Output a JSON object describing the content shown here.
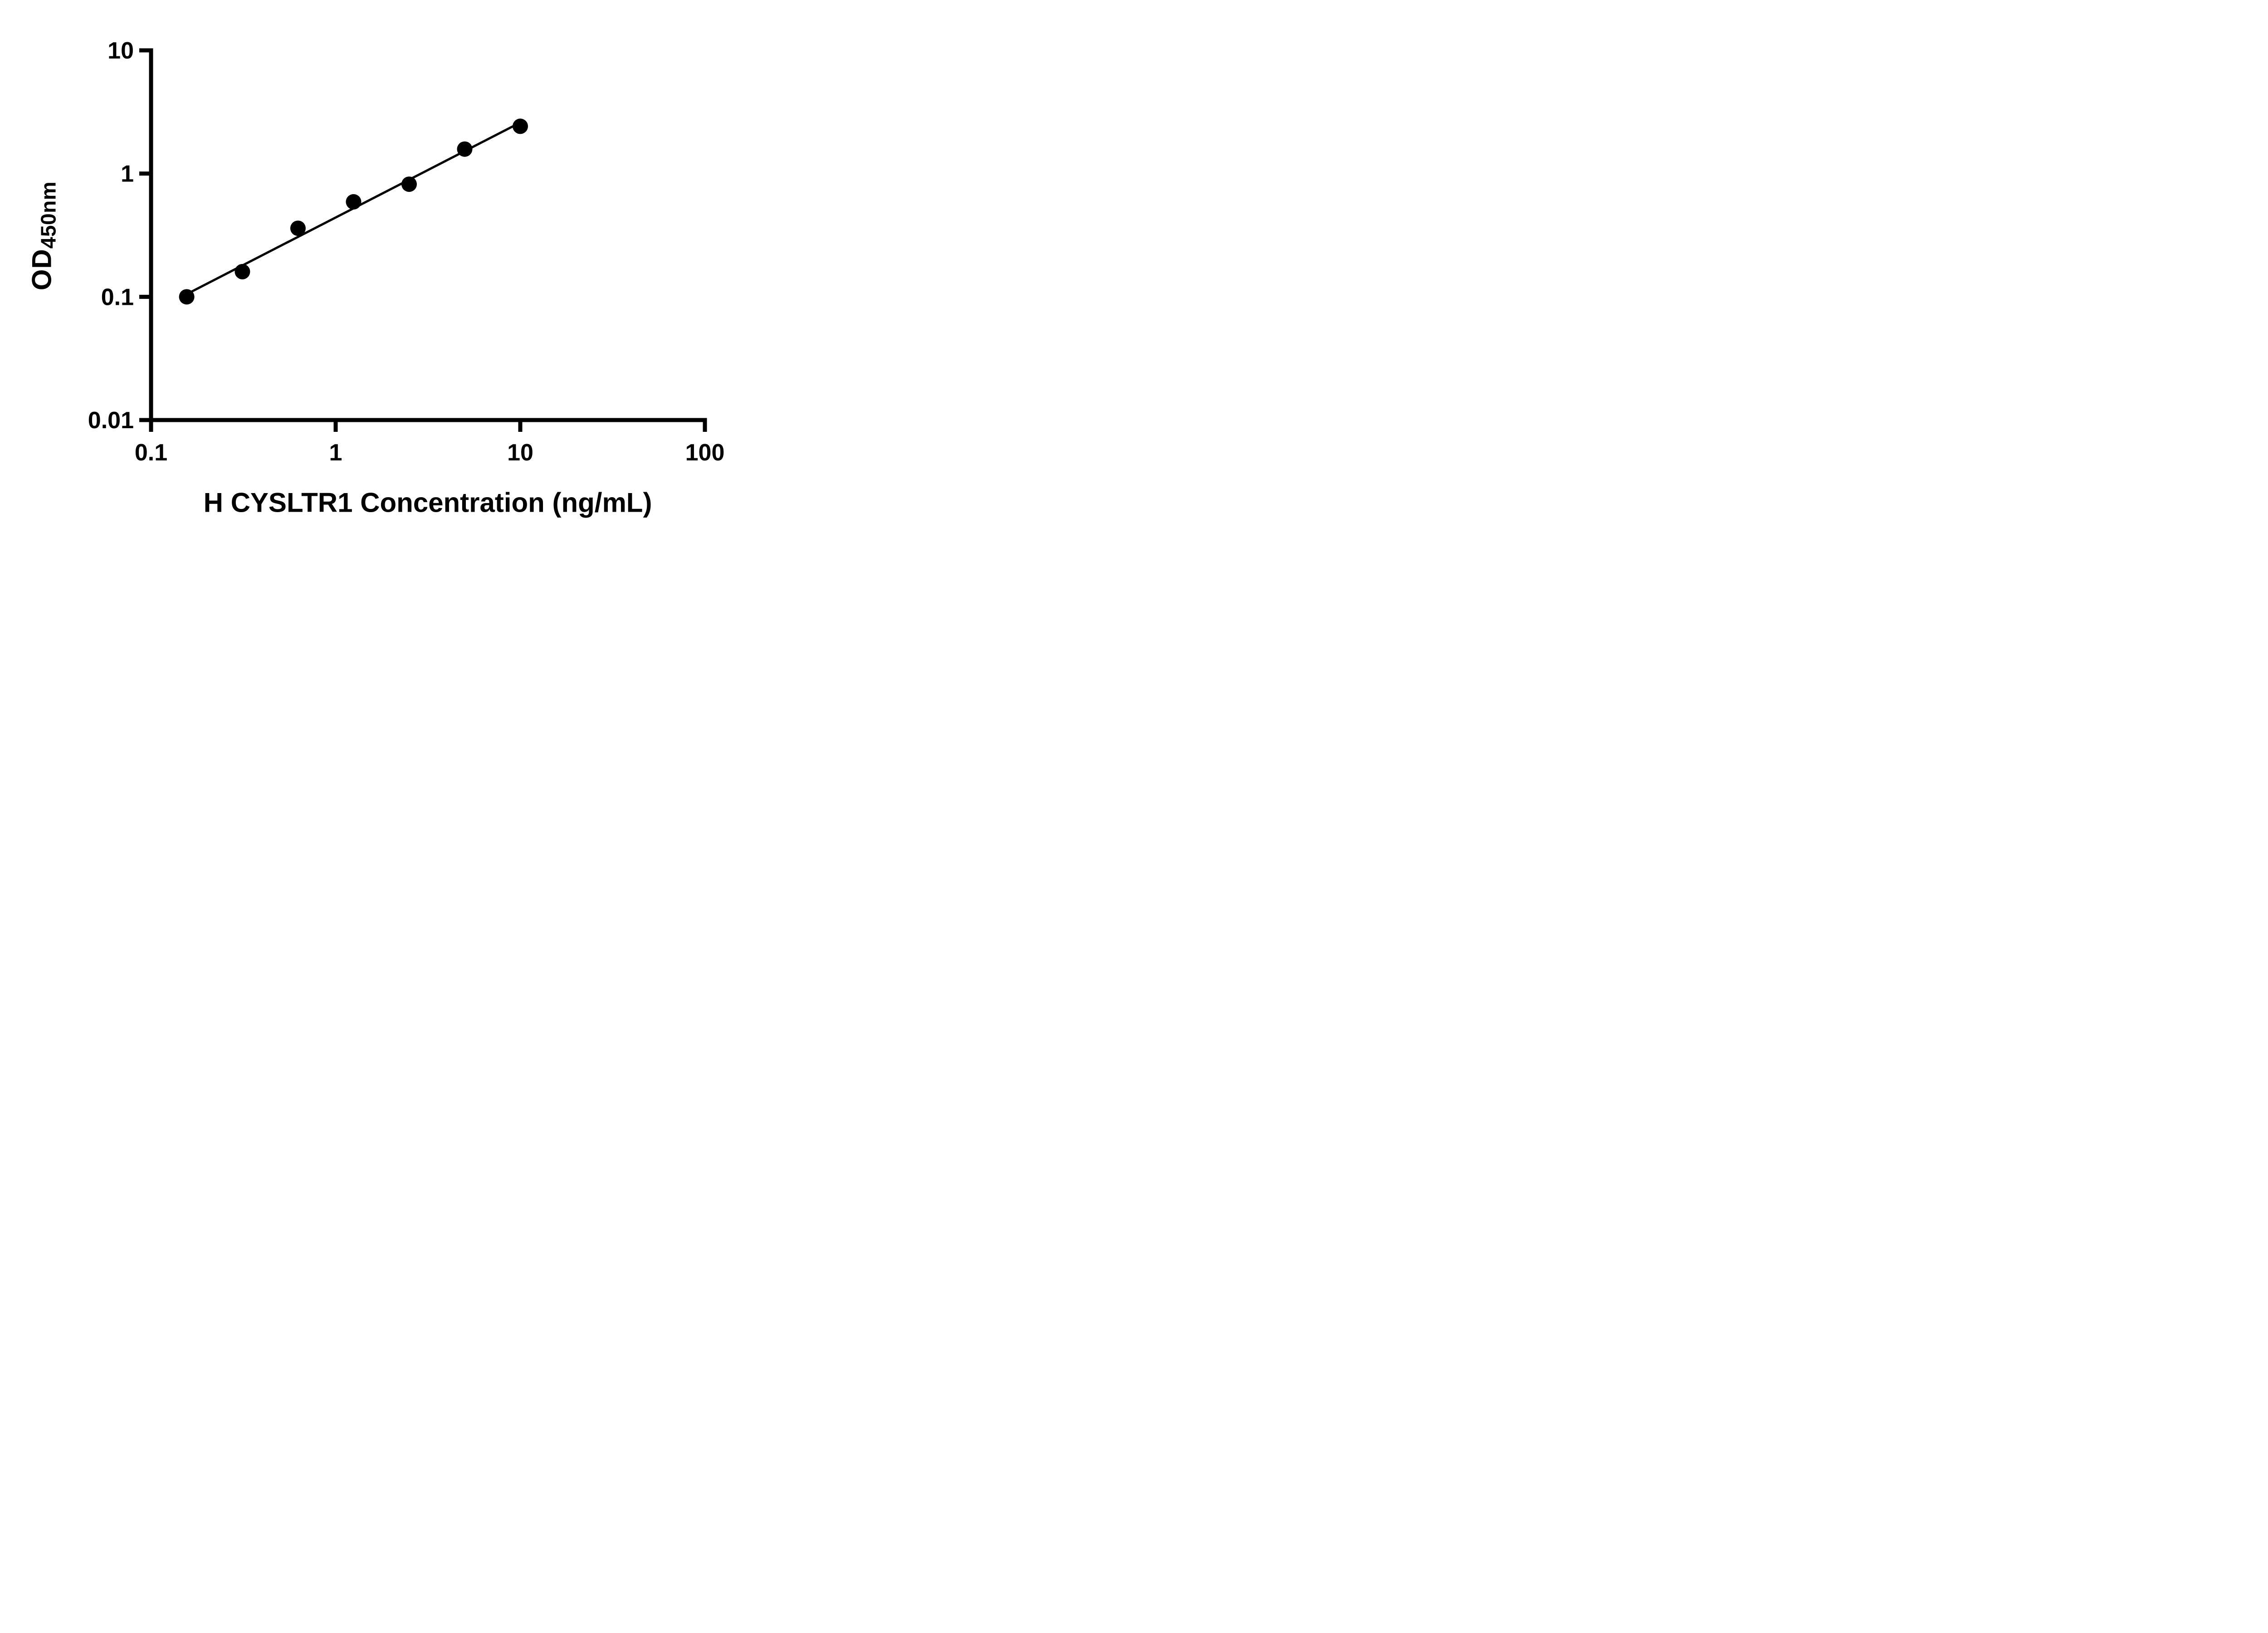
{
  "page": {
    "background": "#ffffff"
  },
  "chart_data": {
    "type": "scatter",
    "title": "",
    "xlabel": "H CYSLTR1 Concentration (ng/mL)",
    "ylabel_main": "OD",
    "ylabel_sub": "450nm",
    "x_scale": "log",
    "y_scale": "log",
    "xlim": [
      0.1,
      100
    ],
    "ylim": [
      0.01,
      10
    ],
    "x_tick_values": [
      0.1,
      1,
      10,
      100
    ],
    "x_tick_labels": [
      "0.1",
      "1",
      "10",
      "100"
    ],
    "y_tick_values": [
      0.01,
      0.1,
      1,
      10
    ],
    "y_tick_labels": [
      "0.01",
      "0.1",
      "1",
      "10"
    ],
    "x": [
      0.156,
      0.3125,
      0.625,
      1.25,
      2.5,
      5,
      10
    ],
    "y": [
      0.1,
      0.16,
      0.36,
      0.59,
      0.82,
      1.58,
      2.42
    ],
    "trendline": "power-fit",
    "grid": false,
    "legend": false,
    "marker_color": "#000000",
    "line_color": "#000000",
    "axis_color": "#000000"
  }
}
